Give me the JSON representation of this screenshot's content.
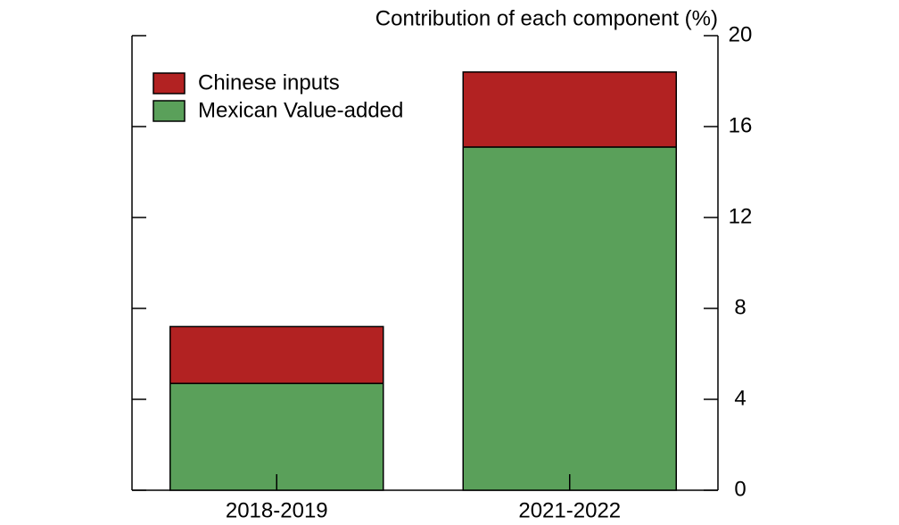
{
  "chart_data": {
    "type": "stacked_bar",
    "title": "Contribution of each component (%)",
    "categories": [
      "2018-2019",
      "2021-2022"
    ],
    "series": [
      {
        "name": "Mexican Value-added",
        "color": "#5aa05a",
        "values": [
          4.7,
          15.1
        ]
      },
      {
        "name": "Chinese inputs",
        "color": "#b22222",
        "values": [
          2.5,
          3.3
        ]
      }
    ],
    "ylim": [
      0,
      20
    ],
    "yticks": [
      0,
      4,
      8,
      12,
      16,
      20
    ],
    "legend": "upper-left"
  }
}
